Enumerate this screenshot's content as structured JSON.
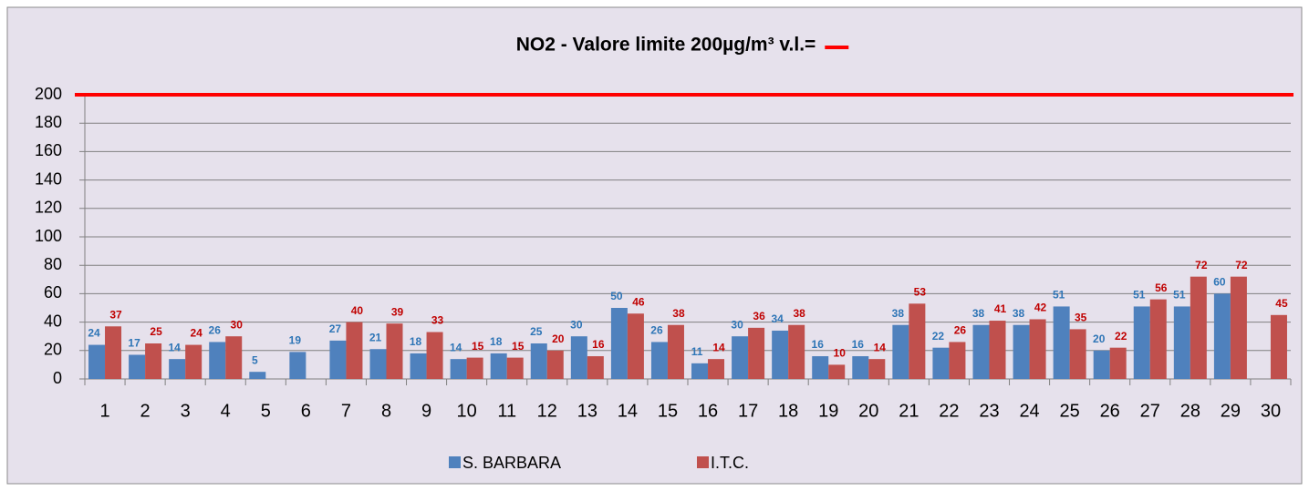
{
  "chart_data": {
    "type": "bar",
    "title": "NO2 - Valore limite 200µg/m³  v.l.=",
    "categories": [
      "1",
      "2",
      "3",
      "4",
      "5",
      "6",
      "7",
      "8",
      "9",
      "10",
      "11",
      "12",
      "13",
      "14",
      "15",
      "16",
      "17",
      "18",
      "19",
      "20",
      "21",
      "22",
      "23",
      "24",
      "25",
      "26",
      "27",
      "28",
      "29",
      "30"
    ],
    "series": [
      {
        "name": "S. BARBARA",
        "color": "#4f81bd",
        "label_color": "#2e75b6",
        "values": [
          24,
          17,
          14,
          26,
          5,
          19,
          27,
          21,
          18,
          14,
          18,
          25,
          30,
          50,
          26,
          11,
          30,
          34,
          16,
          16,
          38,
          22,
          38,
          38,
          51,
          20,
          51,
          51,
          60,
          null
        ]
      },
      {
        "name": "I.T.C.",
        "color": "#c0504d",
        "label_color": "#c00000",
        "values": [
          37,
          25,
          24,
          30,
          null,
          null,
          40,
          39,
          33,
          15,
          15,
          20,
          16,
          46,
          38,
          14,
          36,
          38,
          10,
          14,
          53,
          26,
          41,
          42,
          35,
          22,
          56,
          72,
          72,
          45
        ]
      }
    ],
    "limit_line": {
      "value": 200,
      "color": "#ff0000"
    },
    "ylim": [
      0,
      200
    ],
    "yticks": [
      0,
      20,
      40,
      60,
      80,
      100,
      120,
      140,
      160,
      180,
      200
    ],
    "grid": true,
    "legend": "bottom"
  }
}
